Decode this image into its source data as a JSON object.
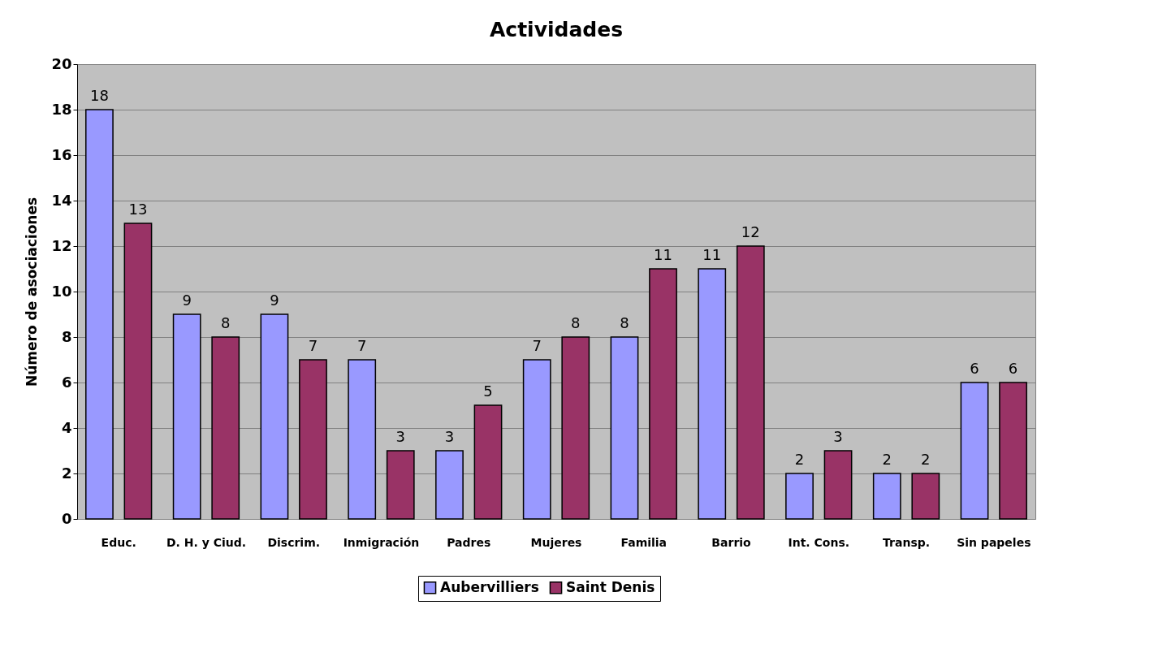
{
  "chart_data": {
    "type": "bar",
    "title": "Actividades",
    "ylabel": "Número de asociaciones",
    "categories": [
      "Educ.",
      "D. H. y Ciud.",
      "Discrim.",
      "Inmigración",
      "Padres",
      "Mujeres",
      "Familia",
      "Barrio",
      "Int. Cons.",
      "Transp.",
      "Sin papeles"
    ],
    "series": [
      {
        "name": "Aubervilliers",
        "color": "#9999ff",
        "values": [
          18,
          9,
          9,
          7,
          3,
          7,
          8,
          11,
          2,
          2,
          6
        ]
      },
      {
        "name": "Saint Denis",
        "color": "#993366",
        "values": [
          13,
          8,
          7,
          3,
          5,
          8,
          11,
          12,
          3,
          2,
          6
        ]
      }
    ],
    "ylim": [
      0,
      20
    ],
    "yticks": [
      0,
      2,
      4,
      6,
      8,
      10,
      12,
      14,
      16,
      18,
      20
    ],
    "grid": "y",
    "legend": "bottom",
    "data_labels": true
  }
}
